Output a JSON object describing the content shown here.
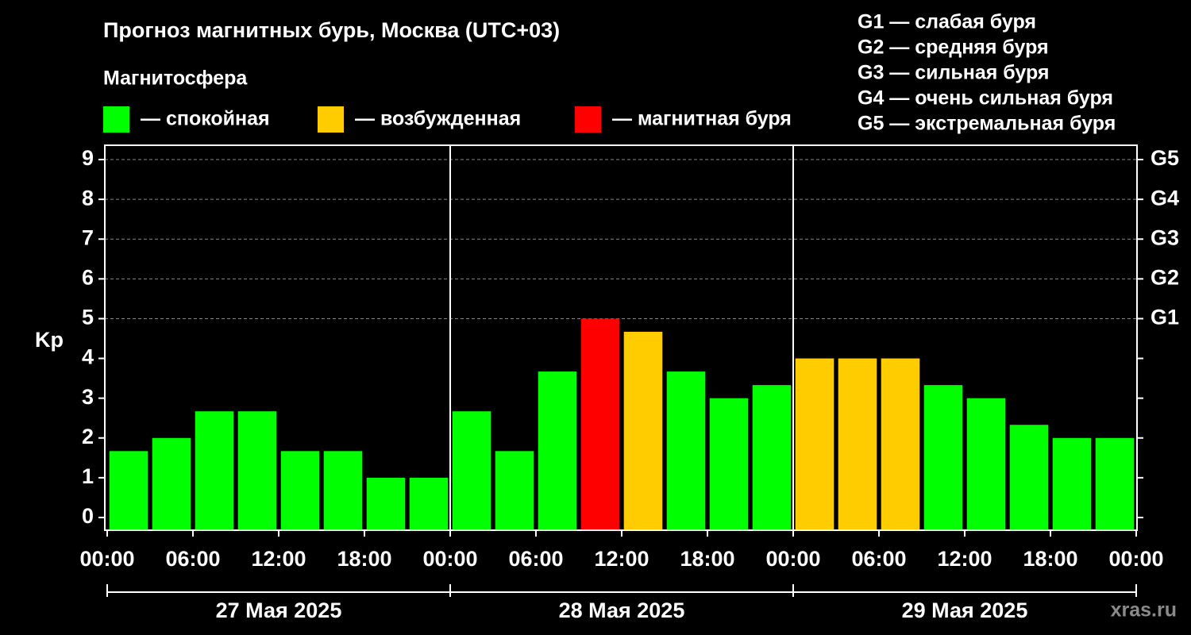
{
  "chart_data": {
    "type": "bar",
    "title": "Прогноз магнитных бурь, Москва (UTC+03)",
    "legend_title": "Магнитосфера",
    "legend": [
      {
        "color": "#00ff00",
        "label": "— спокойная"
      },
      {
        "color": "#ffcc00",
        "label": "— возбужденная"
      },
      {
        "color": "#ff0000",
        "label": "— магнитная буря"
      }
    ],
    "scale_notes": [
      "G1 — слабая буря",
      "G2 — средняя буря",
      "G3 — сильная буря",
      "G4 — очень сильная буря",
      "G5 — экстремальная буря"
    ],
    "ylabel": "Kp",
    "x": [
      1.5,
      4.5,
      7.5,
      10.5,
      13.5,
      16.5,
      19.5,
      22.5,
      25.5,
      28.5,
      31.5,
      34.5,
      37.5,
      40.5,
      43.5,
      46.5,
      49.5,
      52.5,
      55.5,
      58.5,
      61.5,
      64.5,
      67.5,
      70.5
    ],
    "values": [
      1.67,
      2,
      2.67,
      2.67,
      1.67,
      1.67,
      1,
      1,
      2.67,
      1.67,
      3.67,
      5,
      4.67,
      3.67,
      3,
      3.33,
      4,
      4,
      4,
      3.33,
      3,
      2.33,
      2,
      2
    ],
    "colors": [
      "#00ff00",
      "#00ff00",
      "#00ff00",
      "#00ff00",
      "#00ff00",
      "#00ff00",
      "#00ff00",
      "#00ff00",
      "#00ff00",
      "#00ff00",
      "#00ff00",
      "#ff0000",
      "#ffcc00",
      "#00ff00",
      "#00ff00",
      "#00ff00",
      "#ffcc00",
      "#ffcc00",
      "#ffcc00",
      "#00ff00",
      "#00ff00",
      "#00ff00",
      "#00ff00",
      "#00ff00"
    ],
    "bar_width": 2.7,
    "xlim": [
      0,
      72
    ],
    "xticks": [
      {
        "value": 0,
        "label": "00:00"
      },
      {
        "value": 6,
        "label": "06:00"
      },
      {
        "value": 12,
        "label": "12:00"
      },
      {
        "value": 18,
        "label": "18:00"
      },
      {
        "value": 24,
        "label": "00:00"
      },
      {
        "value": 30,
        "label": "06:00"
      },
      {
        "value": 36,
        "label": "12:00"
      },
      {
        "value": 42,
        "label": "18:00"
      },
      {
        "value": 48,
        "label": "00:00"
      },
      {
        "value": 54,
        "label": "06:00"
      },
      {
        "value": 60,
        "label": "12:00"
      },
      {
        "value": 66,
        "label": "18:00"
      },
      {
        "value": 72,
        "label": "00:00"
      }
    ],
    "days": [
      {
        "start": 0,
        "end": 24,
        "label": "27 Мая 2025"
      },
      {
        "start": 24,
        "end": 48,
        "label": "28 Мая 2025"
      },
      {
        "start": 48,
        "end": 72,
        "label": "29 Мая 2025"
      }
    ],
    "ylim": [
      -0.32,
      9.36
    ],
    "yticks": [
      0,
      1,
      2,
      3,
      4,
      5,
      6,
      7,
      8,
      9
    ],
    "y2lim": [
      -0.32,
      9.36
    ],
    "y2ticks": [
      {
        "value": 5,
        "label": "G1"
      },
      {
        "value": 6,
        "label": "G2"
      },
      {
        "value": 7,
        "label": "G3"
      },
      {
        "value": 8,
        "label": "G4"
      },
      {
        "value": 9,
        "label": "G5"
      }
    ],
    "grid": true,
    "watermark": "xras.ru"
  }
}
